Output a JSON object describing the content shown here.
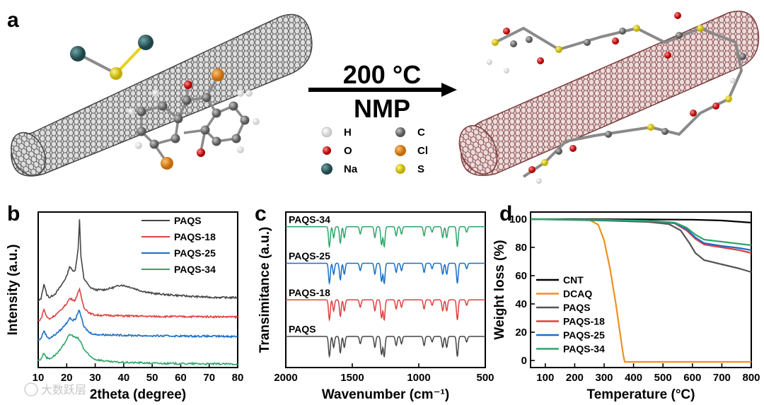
{
  "figure": {
    "panel_labels": [
      "a",
      "b",
      "c",
      "d"
    ],
    "scheme": {
      "condition_temperature": "200 °C",
      "condition_solvent": "NMP",
      "atom_key": [
        {
          "symbol": "H",
          "color": "#f2f2f2"
        },
        {
          "symbol": "C",
          "color": "#7a7a7a"
        },
        {
          "symbol": "O",
          "color": "#d81b1b"
        },
        {
          "symbol": "Cl",
          "color": "#e08a1e"
        },
        {
          "symbol": "Na",
          "color": "#2e5e62"
        },
        {
          "symbol": "S",
          "color": "#e6d21c"
        }
      ],
      "left_tube_color": "#5a5a5a",
      "right_tube_color": "#8a4a4a"
    },
    "watermark": "大数跃层"
  },
  "chart_data": [
    {
      "id": "b",
      "type": "line",
      "title": "",
      "xlabel": "2theta (degree)",
      "ylabel": "Intensity (a.u.)",
      "xlim": [
        10,
        80
      ],
      "xticks": [
        "10",
        "20",
        "30",
        "40",
        "50",
        "60",
        "70",
        "80"
      ],
      "legend_position": "top-right",
      "series": [
        {
          "name": "PAQS",
          "color": "#454545",
          "offset": 3.0,
          "x": [
            10,
            11,
            12,
            13,
            14,
            16,
            18,
            20,
            21,
            22,
            23,
            24,
            24.5,
            25,
            26,
            28,
            30,
            33,
            36,
            39,
            42,
            46,
            50,
            55,
            60,
            65,
            70,
            75,
            80
          ],
          "y": [
            0.4,
            0.55,
            1.3,
            0.75,
            0.6,
            0.8,
            1.2,
            1.7,
            2.2,
            2.0,
            2.0,
            3.1,
            4.6,
            2.7,
            1.6,
            1.15,
            1.0,
            1.0,
            1.1,
            1.25,
            1.15,
            0.95,
            0.82,
            0.75,
            0.7,
            0.65,
            0.62,
            0.6,
            0.6
          ]
        },
        {
          "name": "PAQS-18",
          "color": "#e04040",
          "offset": 2.0,
          "x": [
            10,
            11,
            12,
            13,
            14,
            16,
            18,
            20,
            21,
            22,
            23,
            24,
            24.5,
            25,
            26,
            28,
            30,
            35,
            40,
            50,
            60,
            70,
            80
          ],
          "y": [
            0.4,
            0.5,
            1.0,
            0.6,
            0.5,
            0.7,
            0.95,
            1.3,
            1.55,
            1.5,
            1.45,
            1.9,
            2.0,
            1.7,
            1.1,
            0.8,
            0.7,
            0.68,
            0.66,
            0.63,
            0.62,
            0.62,
            0.6
          ]
        },
        {
          "name": "PAQS-25",
          "color": "#1a6fc4",
          "offset": 1.0,
          "x": [
            10,
            11,
            12,
            13,
            14,
            16,
            18,
            20,
            21,
            22,
            23,
            24,
            24.5,
            25,
            26,
            28,
            30,
            35,
            40,
            50,
            60,
            70,
            80
          ],
          "y": [
            0.4,
            0.5,
            0.9,
            0.6,
            0.5,
            0.7,
            0.95,
            1.3,
            1.55,
            1.45,
            1.45,
            1.85,
            1.95,
            1.65,
            1.1,
            0.8,
            0.7,
            0.68,
            0.66,
            0.63,
            0.62,
            0.61,
            0.6
          ]
        },
        {
          "name": "PAQS-34",
          "color": "#2da66a",
          "offset": 0.0,
          "x": [
            10,
            11,
            12,
            13,
            14,
            16,
            18,
            20,
            21,
            22,
            23,
            24,
            25,
            26,
            28,
            30,
            35,
            40,
            45,
            50,
            60,
            70,
            80
          ],
          "y": [
            0.35,
            0.45,
            0.75,
            0.5,
            0.45,
            0.65,
            0.95,
            1.45,
            1.7,
            1.65,
            1.55,
            1.5,
            1.3,
            0.95,
            0.6,
            0.42,
            0.3,
            0.26,
            0.25,
            0.22,
            0.2,
            0.19,
            0.18
          ]
        }
      ]
    },
    {
      "id": "c",
      "type": "line",
      "title": "",
      "xlabel": "Wavenumber (cm⁻¹)",
      "ylabel": "Transimitance (a.u.)",
      "xlim": [
        2000,
        500
      ],
      "xticks": [
        "2000",
        "1500",
        "1000",
        "500"
      ],
      "series": [
        {
          "name": "PAQS-34",
          "color": "#2da66a",
          "offset": 3.0
        },
        {
          "name": "PAQS-25",
          "color": "#1a6fc4",
          "offset": 2.0
        },
        {
          "name": "PAQS-18",
          "color": "#e04040",
          "offset": 1.0
        },
        {
          "name": "PAQS",
          "color": "#454545",
          "offset": 0.0
        }
      ],
      "baseline_x": [
        2000,
        1800,
        1720,
        1700,
        1000,
        500
      ],
      "baseline_y": [
        0.0,
        -0.02,
        -0.05,
        -0.08,
        -0.03,
        0.05
      ],
      "peaks": [
        {
          "x": 1672,
          "depth": 0.55
        },
        {
          "x": 1640,
          "depth": 0.3
        },
        {
          "x": 1590,
          "depth": 0.45
        },
        {
          "x": 1560,
          "depth": 0.3
        },
        {
          "x": 1440,
          "depth": 0.2
        },
        {
          "x": 1330,
          "depth": 0.3
        },
        {
          "x": 1280,
          "depth": 0.5
        },
        {
          "x": 1260,
          "depth": 0.55
        },
        {
          "x": 1170,
          "depth": 0.25
        },
        {
          "x": 1130,
          "depth": 0.2
        },
        {
          "x": 960,
          "depth": 0.25
        },
        {
          "x": 900,
          "depth": 0.15
        },
        {
          "x": 820,
          "depth": 0.3
        },
        {
          "x": 790,
          "depth": 0.3
        },
        {
          "x": 710,
          "depth": 0.55
        },
        {
          "x": 640,
          "depth": 0.15
        }
      ]
    },
    {
      "id": "d",
      "type": "line",
      "title": "",
      "xlabel": "Temperature (°C)",
      "ylabel": "Weight loss (%)",
      "xlim": [
        50,
        800
      ],
      "ylim": [
        -5,
        105
      ],
      "xticks": [
        "100",
        "200",
        "300",
        "400",
        "500",
        "600",
        "700",
        "800"
      ],
      "yticks": [
        "0",
        "20",
        "40",
        "60",
        "80",
        "100"
      ],
      "legend_position": "bottom-left",
      "series": [
        {
          "name": "CNT",
          "color": "#000000",
          "x": [
            50,
            200,
            400,
            600,
            700,
            800
          ],
          "y": [
            100,
            100,
            99.8,
            99.6,
            99,
            97.5
          ]
        },
        {
          "name": "DCAQ",
          "color": "#f0901a",
          "x": [
            50,
            250,
            280,
            300,
            320,
            340,
            355,
            365,
            370,
            380,
            800
          ],
          "y": [
            100,
            99.5,
            96,
            85,
            65,
            40,
            18,
            4,
            -1,
            -1,
            -1
          ]
        },
        {
          "name": "PAQS",
          "color": "#555555",
          "x": [
            50,
            300,
            450,
            520,
            560,
            590,
            610,
            640,
            700,
            760,
            800
          ],
          "y": [
            100,
            99,
            98,
            96.5,
            92,
            83,
            76,
            71,
            68,
            65,
            62.5
          ]
        },
        {
          "name": "PAQS-18",
          "color": "#e04040",
          "x": [
            50,
            300,
            450,
            540,
            580,
            610,
            640,
            700,
            760,
            800
          ],
          "y": [
            100,
            99.3,
            98.5,
            97,
            92,
            86,
            82,
            80,
            78,
            76
          ]
        },
        {
          "name": "PAQS-25",
          "color": "#1a6fc4",
          "x": [
            50,
            300,
            450,
            540,
            580,
            610,
            640,
            700,
            760,
            800
          ],
          "y": [
            100,
            99.3,
            98.6,
            97.3,
            93,
            87,
            83,
            81,
            79.5,
            78
          ]
        },
        {
          "name": "PAQS-34",
          "color": "#2da66a",
          "x": [
            50,
            300,
            450,
            540,
            580,
            610,
            640,
            700,
            760,
            800
          ],
          "y": [
            100,
            99.5,
            98.8,
            97.6,
            94,
            89,
            85.5,
            84,
            82.5,
            81.5
          ]
        }
      ]
    }
  ]
}
